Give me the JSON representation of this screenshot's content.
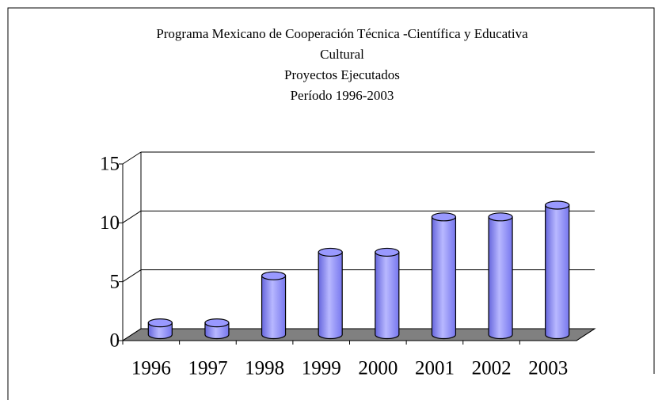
{
  "chart_data": {
    "type": "bar",
    "title": [
      "Programa Mexicano de Cooperación Técnica -Científica y Educativa",
      "Cultural",
      "Proyectos Ejecutados",
      "Período 1996-2003"
    ],
    "categories": [
      "1996",
      "1997",
      "1998",
      "1999",
      "2000",
      "2001",
      "2002",
      "2003"
    ],
    "values": [
      1,
      1,
      5,
      7,
      7,
      10,
      10,
      11
    ],
    "color": "#9999ff",
    "ylim": [
      0,
      15
    ],
    "yticks": [
      0,
      5,
      10,
      15
    ],
    "grid": true
  }
}
